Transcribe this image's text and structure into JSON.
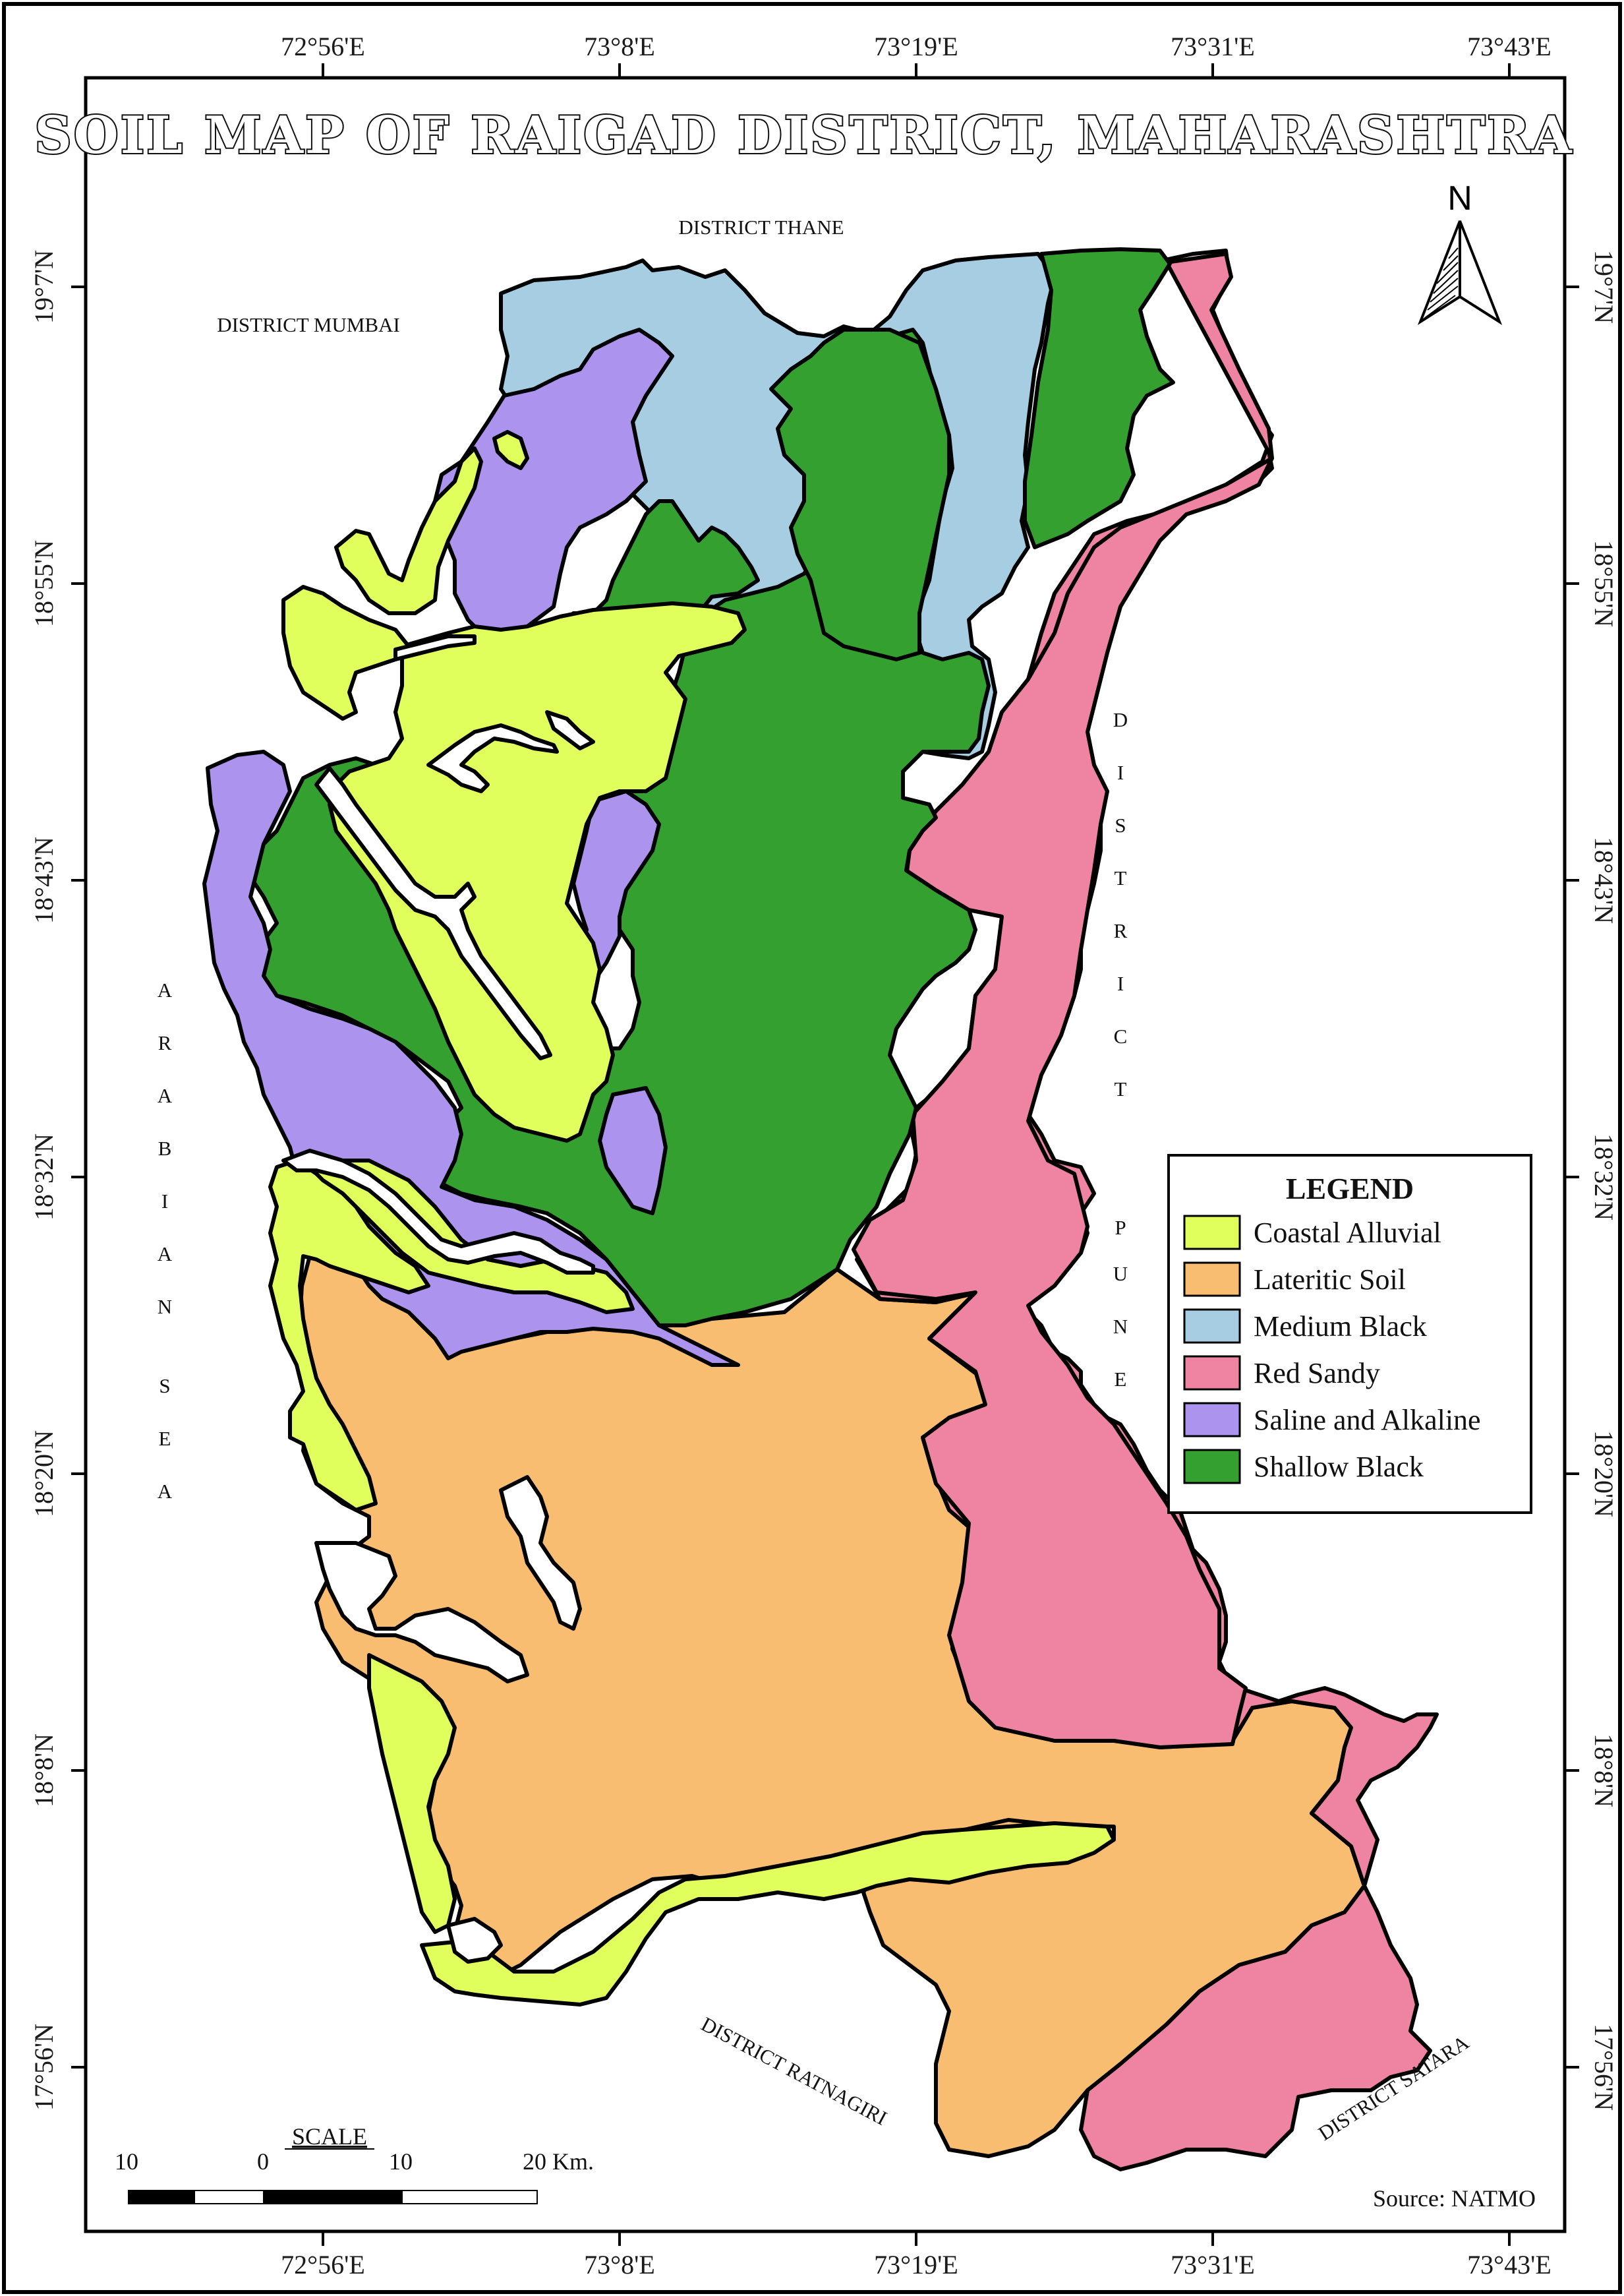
{
  "title": "SOIL MAP OF RAIGAD DISTRICT, MAHARASHTRA",
  "graticule": {
    "longitudes": [
      "72°56'E",
      "73°8'E",
      "73°19'E",
      "73°31'E",
      "73°43'E"
    ],
    "latitudes": [
      "19°7'N",
      "18°55'N",
      "18°43'N",
      "18°32'N",
      "18°20'N",
      "18°8'N",
      "17°56'N"
    ]
  },
  "neighbours": {
    "thane": "DISTRICT THANE",
    "mumbai": "DISTRICT MUMBAI",
    "ratnagiri": "DISTRICT RATNAGIRI",
    "satara": "DISTRICT SATARA",
    "pune_letters": [
      "D",
      "I",
      "S",
      "T",
      "R",
      "I",
      "C",
      "T",
      "P",
      "U",
      "N",
      "E"
    ],
    "sea_letters": [
      "A",
      "R",
      "A",
      "B",
      "I",
      "A",
      "N",
      "S",
      "E",
      "A"
    ]
  },
  "north_arrow": {
    "label": "N"
  },
  "legend": {
    "title": "LEGEND",
    "items": [
      {
        "label": "Coastal Alluvial",
        "color": "#e0ff5c"
      },
      {
        "label": "Lateritic Soil",
        "color": "#f9bd72"
      },
      {
        "label": "Medium Black",
        "color": "#a7cde2"
      },
      {
        "label": "Red Sandy",
        "color": "#ef84a2"
      },
      {
        "label": "Saline and Alkaline",
        "color": "#ac94ee"
      },
      {
        "label": "Shallow Black",
        "color": "#34a02f"
      }
    ]
  },
  "scale": {
    "title": "SCALE",
    "labels": [
      "10",
      "0",
      "10",
      "20 Km."
    ]
  },
  "source": "Source: NATMO"
}
